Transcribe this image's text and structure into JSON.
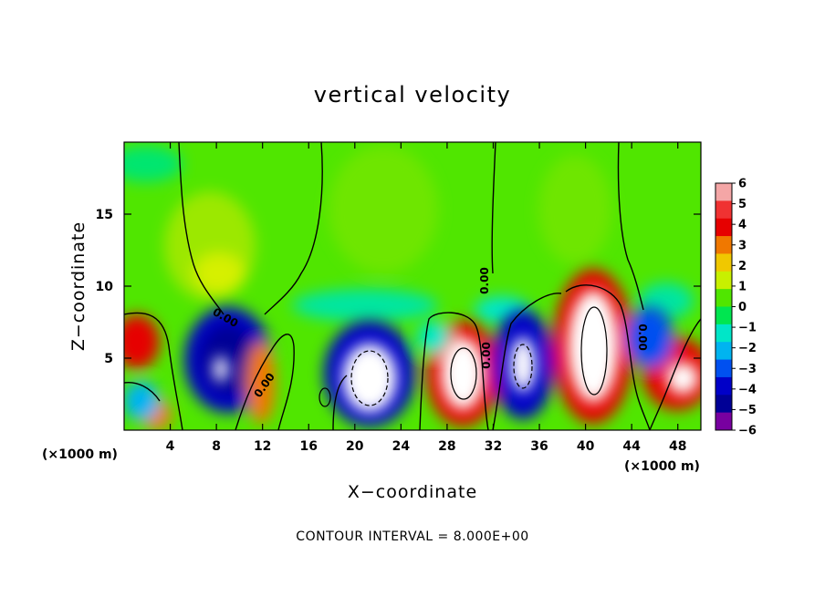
{
  "chart_data": {
    "type": "heatmap",
    "title": "vertical velocity",
    "xlabel": "X−coordinate",
    "ylabel": "Z−coordinate",
    "x_unit_left": "(×1000 m)",
    "x_unit_right": "(×1000 m)",
    "xlim": [
      0,
      50
    ],
    "ylim": [
      0,
      20
    ],
    "x_ticks": [
      4,
      8,
      12,
      16,
      20,
      24,
      28,
      32,
      36,
      40,
      44,
      48
    ],
    "x_tick_labels": [
      "4",
      "8",
      "12",
      "16",
      "20",
      "24",
      "28",
      "32",
      "36",
      "40",
      "44",
      "48"
    ],
    "y_ticks": [
      5,
      10,
      15
    ],
    "y_tick_labels": [
      "5",
      "10",
      "15"
    ],
    "colorbar": {
      "min": -6,
      "max": 6,
      "tick_values": [
        6,
        5,
        4,
        3,
        2,
        1,
        0,
        -1,
        -2,
        -3,
        -4,
        -5,
        -6
      ],
      "tick_labels": [
        "6",
        "5",
        "4",
        "3",
        "2",
        "1",
        "0",
        "−1",
        "−2",
        "−3",
        "−4",
        "−5",
        "−6"
      ],
      "colors": [
        "#f4a6a6",
        "#f03232",
        "#e60000",
        "#f07800",
        "#f0c800",
        "#c8f000",
        "#50e600",
        "#00e650",
        "#00e6c8",
        "#00b4f0",
        "#0050f0",
        "#0000c8",
        "#000096",
        "#7800a0"
      ]
    },
    "contour_interval_text": "CONTOUR INTERVAL = 8.000E+00",
    "contour_labels": [
      "0.00",
      "0.00",
      "0.00",
      "0.00",
      "0.00"
    ],
    "features": [
      {
        "x": 9,
        "z": 5,
        "w": -6
      },
      {
        "x": 12,
        "z": 4,
        "w": 4
      },
      {
        "x": 14,
        "z": 3,
        "w": 3
      },
      {
        "x": 21,
        "z": 3.5,
        "w": -7
      },
      {
        "x": 29,
        "z": 3.5,
        "w": 7
      },
      {
        "x": 34,
        "z": 4.5,
        "w": -6
      },
      {
        "x": 40,
        "z": 6,
        "w": 9
      },
      {
        "x": 48,
        "z": 3.5,
        "w": 6
      },
      {
        "x": 46,
        "z": 5.5,
        "w": -3
      },
      {
        "x": 1,
        "z": 5.5,
        "w": 5
      },
      {
        "x": 17,
        "z": 7,
        "w": -2
      },
      {
        "x": 9.5,
        "z": 11,
        "w": 1.5
      }
    ]
  }
}
